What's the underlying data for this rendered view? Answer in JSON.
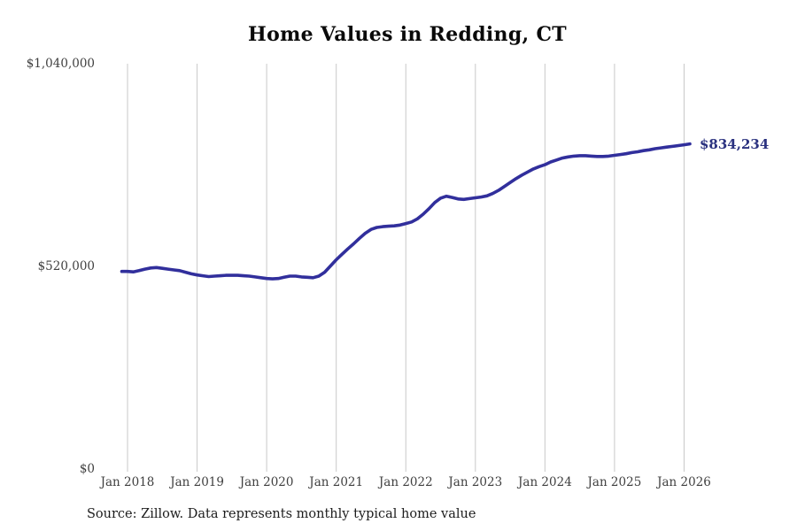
{
  "title": "Home Values in Redding, CT",
  "source_note": "Source: Zillow. Data represents monthly typical home value",
  "colors": {
    "line": "#312f9c",
    "annotation": "#2a317f",
    "gridline": "#c9c9c9",
    "tick_label": "#3f3f3f",
    "title": "#0a0a0a",
    "source": "#1c1c1c",
    "background": "#ffffff"
  },
  "chart_data": {
    "type": "line",
    "title": "Home Values in Redding, CT",
    "xlabel": "",
    "ylabel": "",
    "x_start": "Dec 2017",
    "x_end": "Feb 2026",
    "months_before_first_tick": 1,
    "x_tick_labels": [
      "Jan 2018",
      "Jan 2019",
      "Jan 2020",
      "Jan 2021",
      "Jan 2022",
      "Jan 2023",
      "Jan 2024",
      "Jan 2025",
      "Jan 2026"
    ],
    "y_ticks": [
      {
        "label": "$0",
        "value": 0
      },
      {
        "label": "$520,000",
        "value": 520000
      },
      {
        "label": "$1,040,000",
        "value": 1040000
      }
    ],
    "ylim": [
      0,
      1040000
    ],
    "grid": "vertical",
    "legend": "none",
    "annotation": {
      "text": "$834,234",
      "value": 834234,
      "position": "line-end"
    },
    "series": [
      {
        "name": "Monthly typical home value",
        "values": [
          507000,
          507000,
          506000,
          509000,
          513000,
          516000,
          517000,
          515000,
          513000,
          511000,
          509000,
          505000,
          501000,
          498000,
          496000,
          494000,
          495000,
          496000,
          497000,
          497000,
          497000,
          496000,
          495000,
          493000,
          491000,
          489000,
          488000,
          489000,
          492000,
          495000,
          495000,
          493000,
          492000,
          491000,
          495000,
          505000,
          521000,
          537000,
          551000,
          565000,
          578000,
          592000,
          605000,
          615000,
          620000,
          622000,
          623000,
          624000,
          626000,
          630000,
          634000,
          642000,
          654000,
          668000,
          684000,
          695000,
          700000,
          697000,
          693000,
          692000,
          694000,
          696000,
          698000,
          701000,
          707000,
          715000,
          725000,
          735000,
          745000,
          754000,
          762000,
          770000,
          776000,
          781000,
          788000,
          793000,
          798000,
          801000,
          803000,
          804000,
          804000,
          803000,
          802000,
          802000,
          803000,
          805000,
          807000,
          809000,
          812000,
          814000,
          817000,
          819000,
          822000,
          824000,
          826000,
          828000,
          830000,
          832000,
          834234
        ]
      }
    ]
  }
}
